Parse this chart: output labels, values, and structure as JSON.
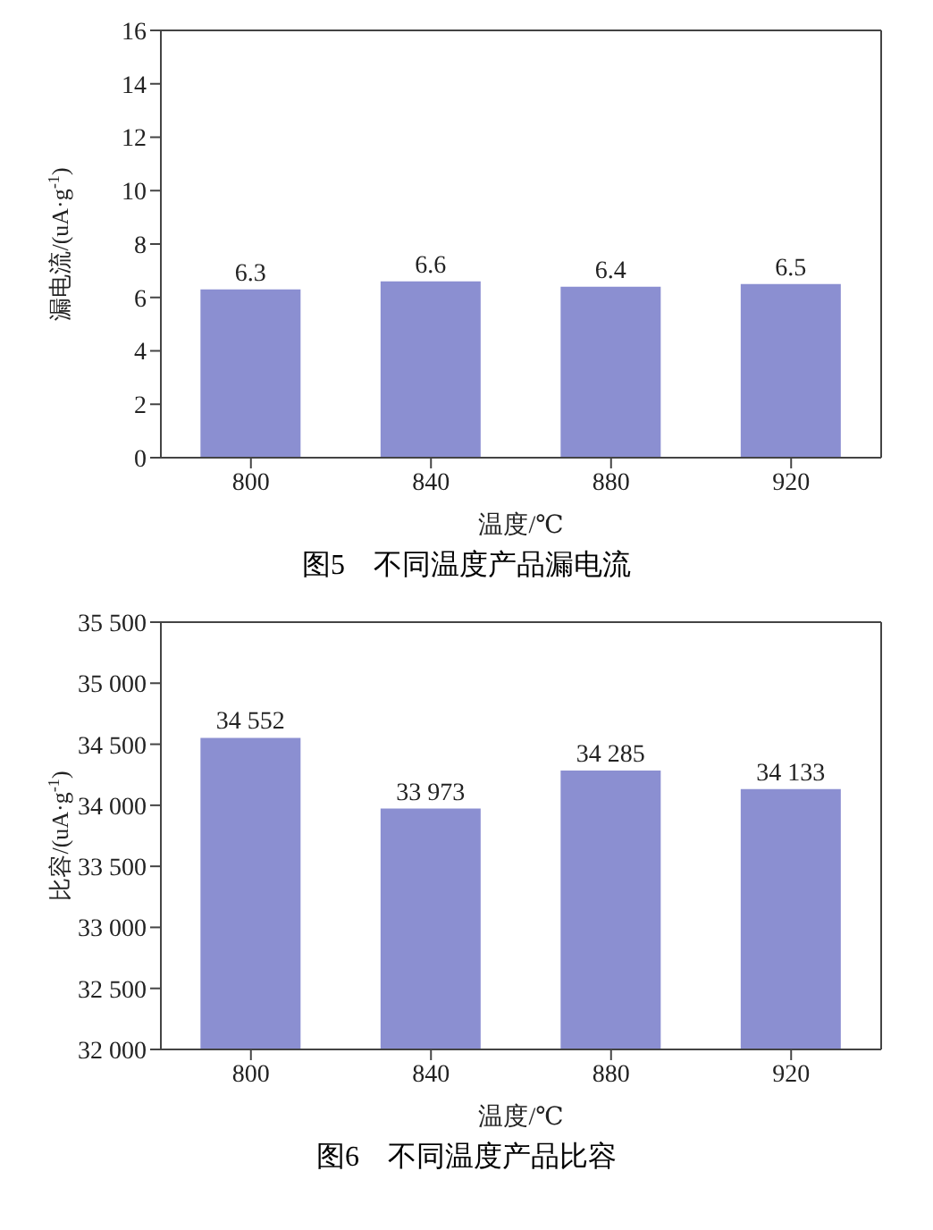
{
  "chart_data": [
    {
      "type": "bar",
      "title": "图5　不同温度产品漏电流",
      "xlabel": "温度/℃",
      "ylabel": "漏电流/(uA·g$^{-1}$)",
      "categories": [
        "800",
        "840",
        "880",
        "920"
      ],
      "series": [
        {
          "color": "#8b8fd1",
          "values": [
            6.3,
            6.6,
            6.4,
            6.5
          ]
        }
      ],
      "ylim": [
        0,
        16
      ],
      "yticks": [
        0,
        2,
        4,
        6,
        8,
        10,
        12,
        14,
        16
      ],
      "data_labels": true,
      "grid": false,
      "legend": false
    },
    {
      "type": "bar",
      "title": "图6　不同温度产品比容",
      "xlabel": "温度/℃",
      "ylabel": "比容/(uA·g$^{-1}$)",
      "categories": [
        "800",
        "840",
        "880",
        "920"
      ],
      "series": [
        {
          "color": "#8b8fd1",
          "values": [
            34552,
            33973,
            34285,
            34133
          ]
        }
      ],
      "ylim": [
        32000,
        35500
      ],
      "yticks": [
        {
          "value": 32000,
          "label": "32 000"
        },
        {
          "value": 32500,
          "label": "32 500"
        },
        {
          "value": 33000,
          "label": "33 000"
        },
        {
          "value": 33500,
          "label": "33 500"
        },
        {
          "value": 34000,
          "label": "34 000"
        },
        {
          "value": 34500,
          "label": "34 500"
        },
        {
          "value": 35000,
          "label": "35 000"
        },
        {
          "value": 35500,
          "label": "35 500"
        }
      ],
      "value_labels": [
        "34 552",
        "33 973",
        "34 285",
        "34 133"
      ],
      "grid": false,
      "legend": false
    }
  ]
}
